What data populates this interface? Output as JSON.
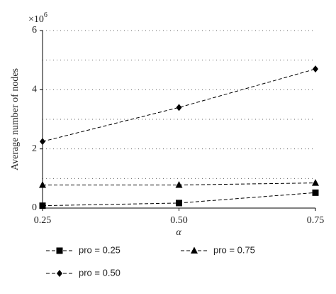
{
  "chart_data": {
    "type": "line",
    "y_label": "Average number of nodes",
    "x_label": "α",
    "y_multiplier": {
      "base": "×10",
      "exponent": "6"
    },
    "x": [
      0.25,
      0.5,
      0.75
    ],
    "xlim": [
      0.25,
      0.75
    ],
    "xticks": [
      0.25,
      {
        "value": 0.5,
        "label": "0.50"
      },
      0.75
    ],
    "ylim": [
      0,
      6
    ],
    "yticks": [
      0,
      2,
      4,
      6
    ],
    "grid": true,
    "grid_yticks": [
      1,
      2,
      3,
      4,
      5,
      6
    ],
    "legend": "bottom",
    "series": [
      {
        "name": "pro = 0.25",
        "color": "#000000",
        "marker": "square",
        "values": [
          0.08,
          0.17,
          0.52
        ]
      },
      {
        "name": "pro = 0.75",
        "color": "#000000",
        "marker": "triangle",
        "values": [
          0.78,
          0.78,
          0.85
        ]
      },
      {
        "name": "pro = 0.50",
        "color": "#000000",
        "marker": "diamond",
        "values": [
          2.25,
          3.4,
          4.7
        ]
      }
    ]
  }
}
